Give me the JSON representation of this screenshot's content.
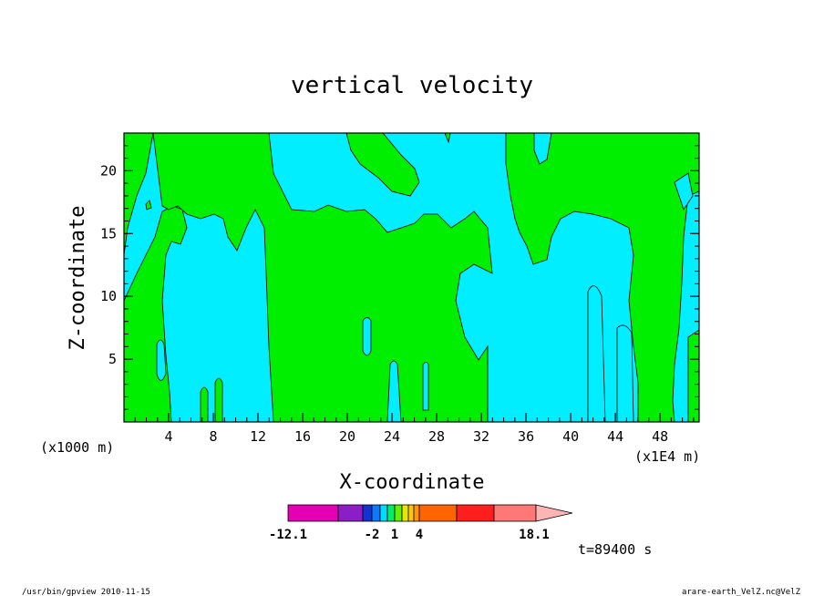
{
  "chart_data": {
    "type": "heatmap",
    "title": "vertical velocity",
    "xlabel": "X-coordinate",
    "ylabel": "Z-coordinate",
    "x_unit_left": "(x1000 m)",
    "x_unit_right": "(x1E4 m)",
    "x_ticks": [
      "4",
      "8",
      "12",
      "16",
      "20",
      "24",
      "28",
      "32",
      "36",
      "40",
      "44",
      "48"
    ],
    "y_ticks": [
      "5",
      "10",
      "15",
      "20"
    ],
    "xlim": [
      0,
      51.5
    ],
    "ylim": [
      0,
      23
    ],
    "fill_colors": {
      "background": "#00eeff",
      "field": "#00ee00"
    },
    "colorbar": {
      "labels": [
        "-12.1",
        "-2",
        "1",
        "4",
        "18.1"
      ],
      "colors": [
        "#e600b4",
        "#8c1ec8",
        "#1432d2",
        "#0a78ff",
        "#00dcff",
        "#00ee66",
        "#66ee00",
        "#e6e600",
        "#ffc800",
        "#ff9600",
        "#ff6400",
        "#ff1e1e",
        "#ff7878",
        "#ffb4b4"
      ]
    },
    "time_label": "t=89400 s"
  },
  "footer": {
    "left": "/usr/bin/gpview   2010-11-15",
    "right": "arare-earth_VelZ.nc@VelZ"
  }
}
